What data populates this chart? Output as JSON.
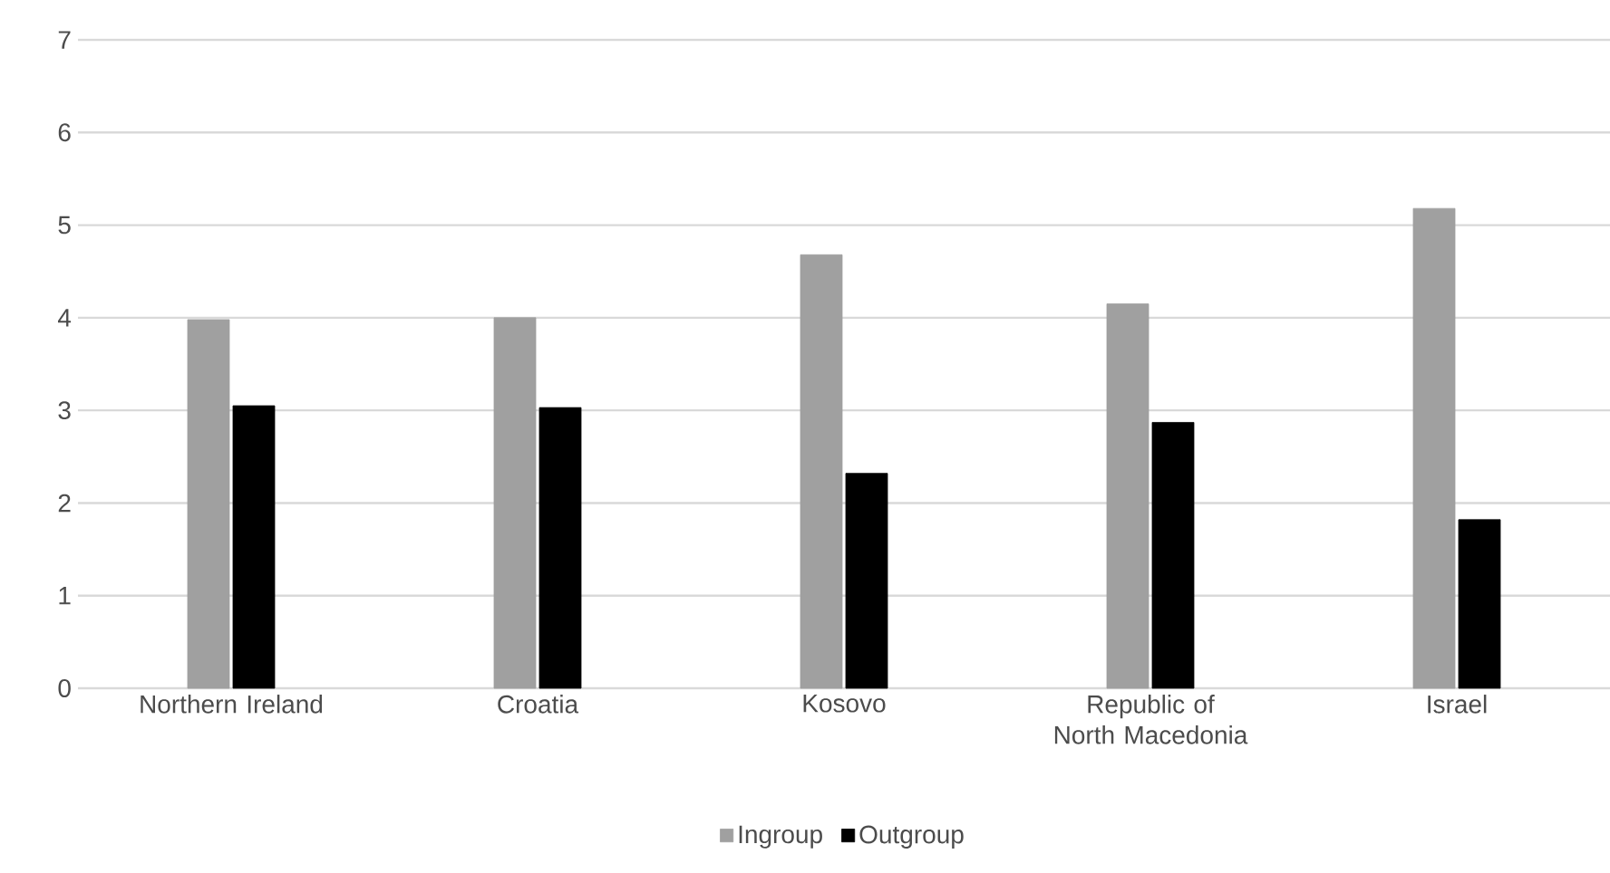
{
  "chart_data": {
    "type": "bar",
    "categories": [
      "Northern Ireland",
      "Croatia",
      "Kosovo",
      "Republic of North Macedonia",
      "Israel"
    ],
    "series": [
      {
        "name": "Ingroup",
        "color": "#a0a0a0",
        "values": [
          3.98,
          4.0,
          4.68,
          4.15,
          5.18
        ]
      },
      {
        "name": "Outgroup",
        "color": "#000000",
        "values": [
          3.05,
          3.03,
          2.32,
          2.87,
          1.82
        ]
      }
    ],
    "ylim": [
      0,
      7
    ],
    "yticks": [
      0,
      1,
      2,
      3,
      4,
      5,
      6,
      7
    ],
    "grid": "y",
    "legend": "bottom"
  }
}
